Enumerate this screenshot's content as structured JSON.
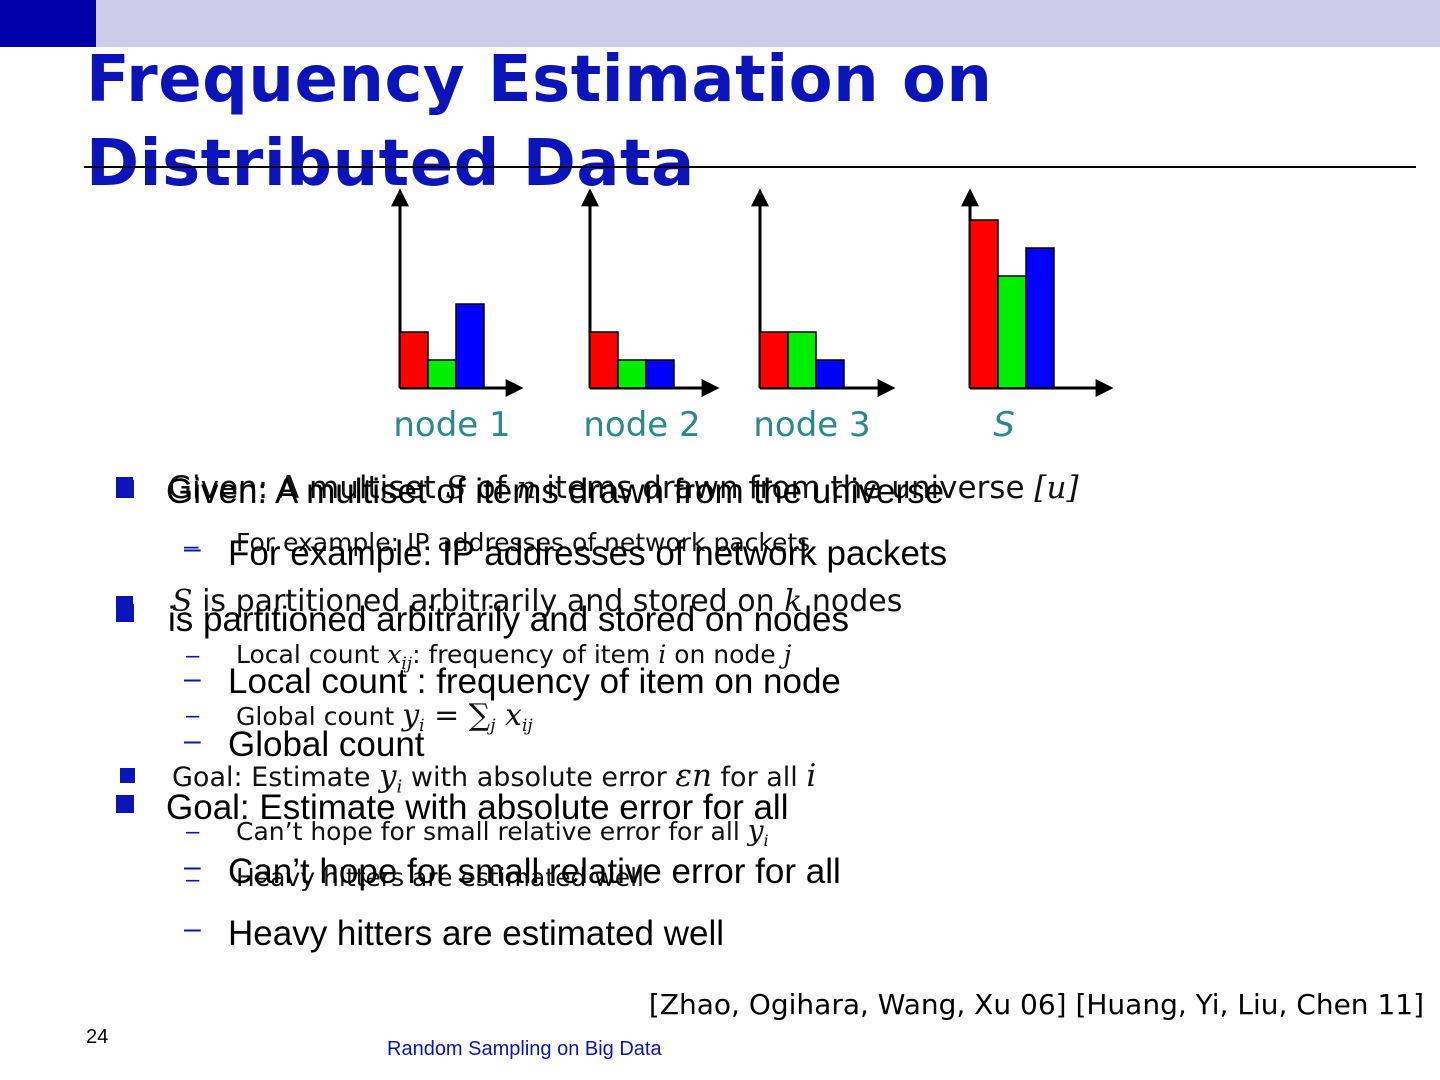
{
  "slide": {
    "title": "Frequency Estimation on Distributed Data",
    "page_number": "24",
    "footer": "Random Sampling on Big Data",
    "citation": "[Zhao, Ogihara, Wang, Xu 06] [Huang, Yi, Liu, Chen 11]",
    "accent_color": "#0a14b8",
    "header_band_color": "#cccce8"
  },
  "figure": {
    "node_labels": [
      "node 1",
      "node 2",
      "node 3",
      "S"
    ],
    "series_colors": [
      "#ff0000",
      "#00ee00",
      "#0000ff"
    ],
    "bar_values": [
      [
        2,
        1,
        3
      ],
      [
        2,
        1,
        1
      ],
      [
        2,
        2,
        1
      ],
      [
        6,
        4,
        5
      ]
    ]
  },
  "math_text": {
    "b1": {
      "pre": "Given: A multiset ",
      "v1": "S",
      "mid1": " of ",
      "v2": "n",
      "mid2": " items drawn from the universe ",
      "v3": "[u]"
    },
    "b1s1": "For example: IP addresses of network packets",
    "b2": {
      "v1": "S",
      "mid1": " is partitioned arbitrarily and stored on ",
      "v2": "k",
      "post": " nodes"
    },
    "b2s1": {
      "pre": "Local count ",
      "v1": "x",
      "sub1": "ij",
      "mid1": ": frequency of item ",
      "v2": "i",
      "mid2": " on node ",
      "v3": "j"
    },
    "b2s2": {
      "pre": "Global count ",
      "v1": "y",
      "sub1": "i",
      "eq": " = ∑",
      "sub2": "j",
      "v2": " x",
      "sub3": "ij"
    },
    "b3": {
      "pre": "Goal: Estimate ",
      "v1": "y",
      "sub1": "i",
      "mid1": " with absolute error ",
      "v2": "εn",
      "mid2": " for all ",
      "v3": "i"
    },
    "b3s1": {
      "pre": "Can’t hope for small relative error for all ",
      "v1": "y",
      "sub1": "i"
    },
    "b3s2": "Heavy hitters are estimated well"
  },
  "plain_text": {
    "b1": "Given: A multiset  of  items drawn from the universe",
    "b1s1": "For example: IP addresses of network packets",
    "b2": " is partitioned arbitrarily and stored on  nodes",
    "b2s1": "Local count : frequency of item  on node",
    "b2s2": "Global count",
    "b3": "Goal: Estimate  with absolute error  for all",
    "b3s1": "Can’t hope for small relative error for all",
    "b3s2": "Heavy hitters are estimated well"
  },
  "bullet_marks": {
    "square": "■",
    "dash": "–"
  }
}
